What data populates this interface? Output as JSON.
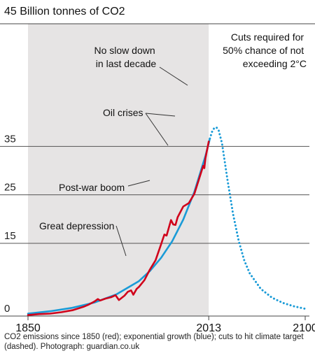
{
  "chart_data": {
    "type": "line",
    "title": "45 Billion tonnes of CO2",
    "xlabel": "",
    "ylabel": "",
    "x_ticks": [
      "1850",
      "2013",
      "2100"
    ],
    "y_ticks": [
      "0",
      "15",
      "25",
      "35"
    ],
    "xlim": [
      1850,
      2100
    ],
    "ylim": [
      0,
      45
    ],
    "shaded_period": [
      1850,
      2013
    ],
    "grid": "horizontal",
    "series": [
      {
        "style": "solid",
        "color": "#d0021b",
        "x": [
          1850,
          1860,
          1870,
          1880,
          1890,
          1900,
          1905,
          1910,
          1913,
          1915,
          1920,
          1925,
          1929,
          1932,
          1937,
          1940,
          1943,
          1945,
          1948,
          1950,
          1955,
          1960,
          1965,
          1970,
          1973,
          1975,
          1979,
          1981,
          1983,
          1985,
          1990,
          1995,
          2000,
          2005,
          2008,
          2009,
          2010,
          2013
        ],
        "y": [
          0.2,
          0.4,
          0.5,
          0.8,
          1.2,
          1.9,
          2.4,
          3.0,
          3.5,
          3.2,
          3.6,
          3.9,
          4.3,
          3.3,
          4.2,
          5.0,
          5.3,
          4.4,
          5.6,
          6.0,
          7.4,
          9.6,
          11.5,
          14.8,
          16.8,
          16.6,
          19.8,
          18.9,
          18.8,
          20.4,
          22.6,
          23.3,
          25.2,
          28.8,
          31.0,
          30.5,
          32.5,
          36.0
        ]
      },
      {
        "style": "solid",
        "color": "#1a9bd7",
        "x": [
          1850,
          1870,
          1890,
          1910,
          1930,
          1950,
          1960,
          1970,
          1980,
          1990,
          2000,
          2010,
          2013,
          2014
        ],
        "y": [
          0.5,
          1.0,
          1.7,
          2.8,
          4.5,
          7.2,
          9.3,
          12.0,
          15.4,
          19.9,
          25.6,
          33.0,
          35.6,
          36.6
        ]
      },
      {
        "style": "dotted",
        "color": "#1a9bd7",
        "x": [
          2014,
          2016,
          2018,
          2020,
          2022,
          2025,
          2030,
          2035,
          2040,
          2045,
          2050,
          2060,
          2070,
          2080,
          2090,
          2100
        ],
        "y": [
          36.6,
          38.0,
          38.8,
          38.9,
          38.3,
          35.6,
          28.0,
          21.0,
          15.5,
          11.5,
          8.8,
          5.6,
          3.8,
          2.7,
          2.0,
          1.5
        ]
      }
    ],
    "annotations": {
      "no_slowdown": [
        "No slow down",
        "in last decade"
      ],
      "oil_crises": "Oil crises",
      "post_war": "Post-war boom",
      "great_depression": "Great depression",
      "cuts": [
        "Cuts required for",
        "50% chance of not",
        "exceeding 2°C"
      ]
    },
    "caption": "CO2 emissions since 1850 (red); exponential growth (blue); cuts to hit climate target (dashed). Photograph: guardian.co.uk"
  }
}
